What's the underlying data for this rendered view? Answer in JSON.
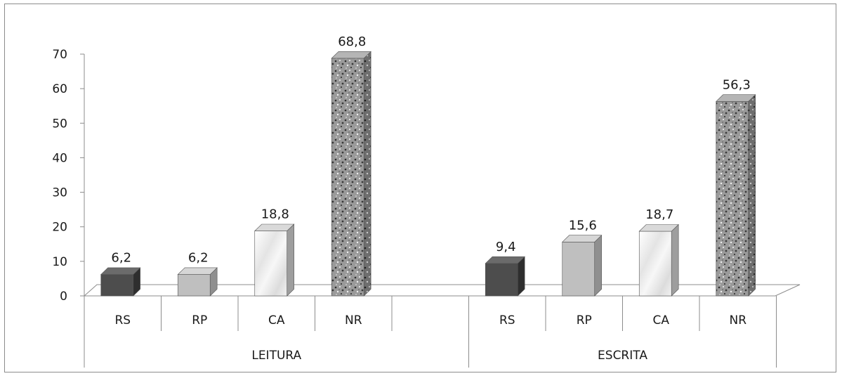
{
  "chart_data": {
    "type": "bar",
    "title": "",
    "xlabel": "",
    "ylabel": "",
    "ylim": [
      0,
      70
    ],
    "yticks": [
      0,
      10,
      20,
      30,
      40,
      50,
      60,
      70
    ],
    "grid": false,
    "legend": "none",
    "style": "3d-column",
    "groups": [
      {
        "label": "LEITURA",
        "categories": [
          "RS",
          "RP",
          "CA",
          "NR",
          ""
        ],
        "values": [
          6.2,
          6.2,
          18.8,
          68.8,
          null
        ],
        "data_labels": [
          "6,2",
          "6,2",
          "18,8",
          "68,8",
          ""
        ]
      },
      {
        "label": "ESCRITA",
        "categories": [
          "RS",
          "RP",
          "CA",
          "NR"
        ],
        "values": [
          9.4,
          15.6,
          18.7,
          56.3
        ],
        "data_labels": [
          "9,4",
          "15,6",
          "18,7",
          "56,3"
        ]
      }
    ],
    "category_colors": {
      "RS": "#4d4d4d",
      "RP": "#bfbfbf",
      "CA": "#eeeeee",
      "NR": "#8a8a8a"
    }
  }
}
